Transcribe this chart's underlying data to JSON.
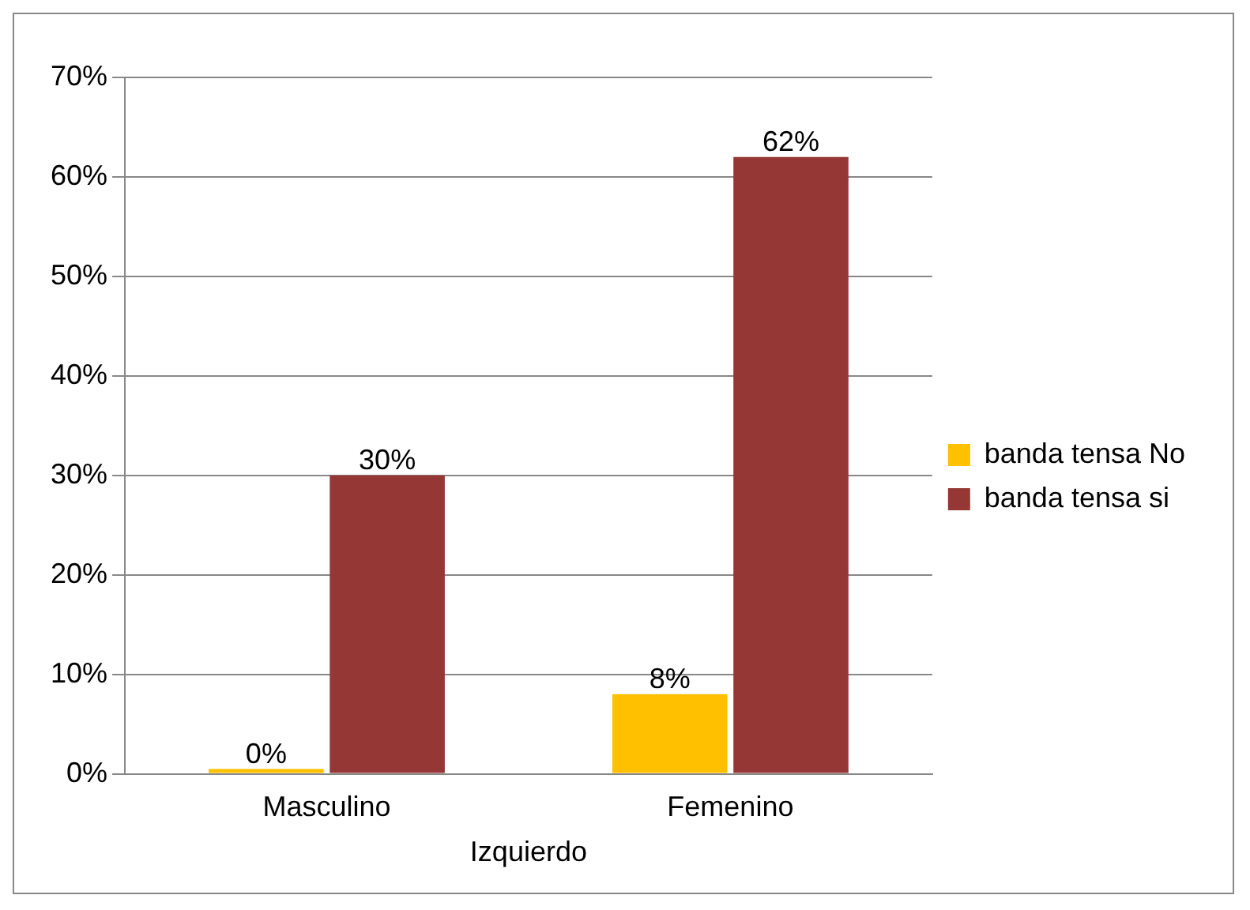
{
  "chart_data": {
    "type": "bar",
    "categories": [
      "Masculino",
      "Femenino"
    ],
    "xlabel": "Izquierdo",
    "series": [
      {
        "name": "banda tensa No",
        "color": "#ffc000",
        "values": [
          0,
          8
        ],
        "value_labels": [
          "0%",
          "8%"
        ]
      },
      {
        "name": "banda tensa si",
        "color": "#953735",
        "values": [
          30,
          62
        ],
        "value_labels": [
          "30%",
          "62%"
        ]
      }
    ],
    "ylim": [
      0,
      70
    ],
    "yticks": [
      {
        "value": 0,
        "label": "0%"
      },
      {
        "value": 10,
        "label": "10%"
      },
      {
        "value": 20,
        "label": "20%"
      },
      {
        "value": 30,
        "label": "30%"
      },
      {
        "value": 40,
        "label": "40%"
      },
      {
        "value": 50,
        "label": "50%"
      },
      {
        "value": 60,
        "label": "60%"
      },
      {
        "value": 70,
        "label": "70%"
      }
    ],
    "grid": "y",
    "legend": "right"
  }
}
